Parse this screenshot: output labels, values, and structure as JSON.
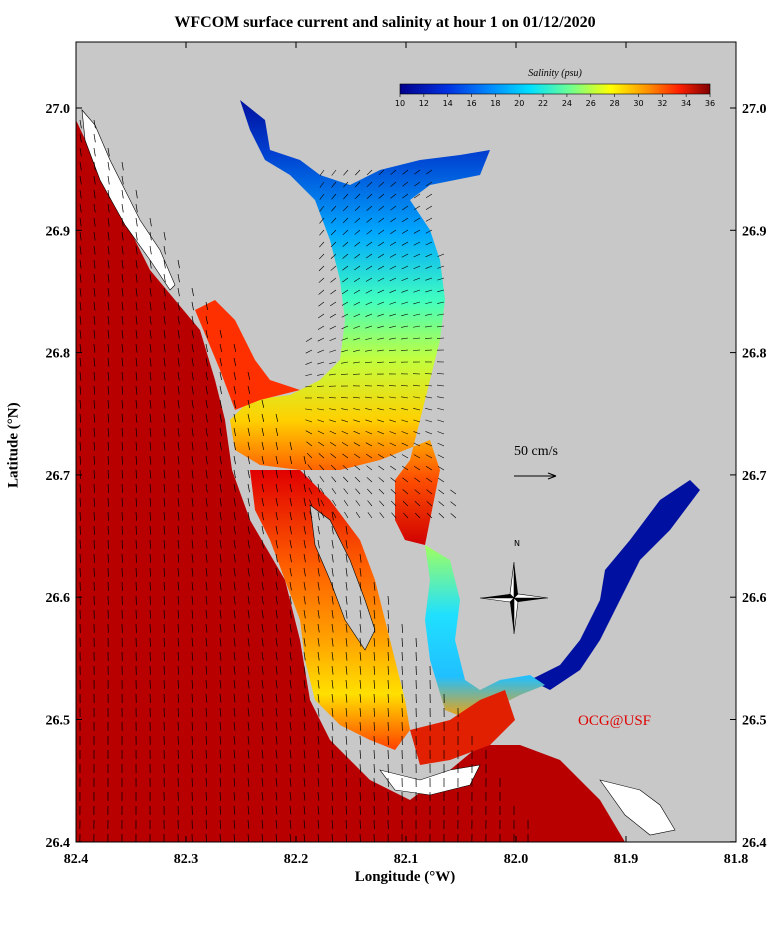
{
  "title": "WFCOM surface current and salinity at hour 1 on 01/12/2020",
  "axes": {
    "xlabel": "Longitude (°W)",
    "ylabel": "Latitude (°N)",
    "x_ticks": [
      "82.4",
      "82.3",
      "82.2",
      "82.1",
      "82.0",
      "81.9",
      "81.8"
    ],
    "y_ticks": [
      "27.0",
      "26.9",
      "26.8",
      "26.7",
      "26.6",
      "26.5",
      "26.4"
    ]
  },
  "colorbar": {
    "title": "Salinity (psu)",
    "ticks": [
      "10",
      "12",
      "14",
      "16",
      "18",
      "20",
      "22",
      "24",
      "26",
      "28",
      "30",
      "32",
      "34",
      "36"
    ],
    "min": 10,
    "max": 36
  },
  "scale_arrow_label": "50 cm/s",
  "compass_label": "N",
  "credit": "OCG@USF",
  "colors": {
    "land": "#c8c8c8",
    "high_salinity": "#b80000",
    "low_salinity": "#0015a0",
    "credit": "#e00000"
  }
}
